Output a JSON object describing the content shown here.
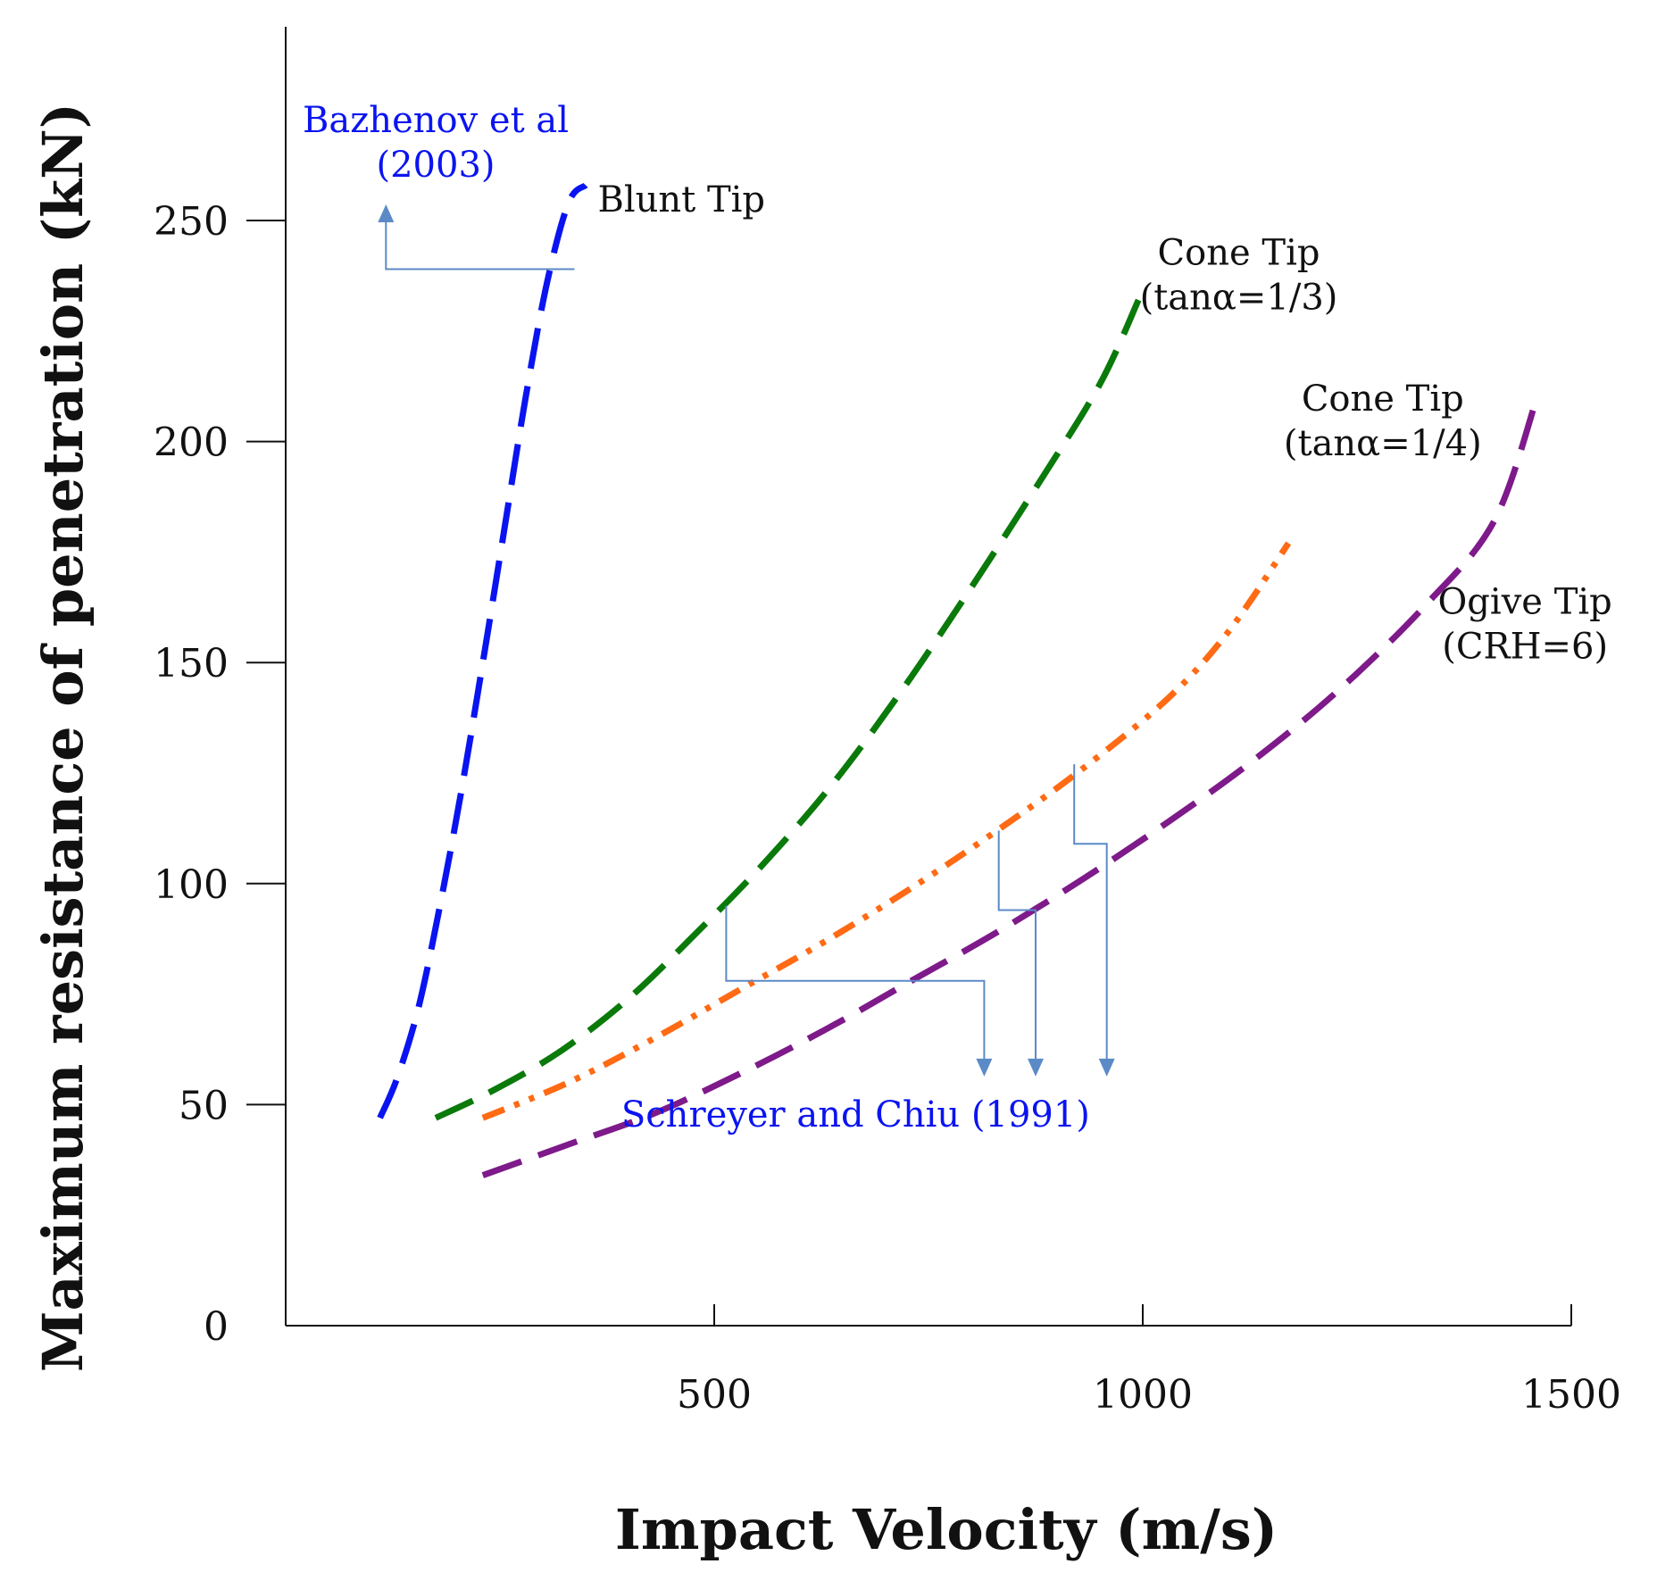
{
  "chart_data": {
    "type": "line",
    "xlabel": "Impact Velocity (m/s)",
    "ylabel": "Maximum resistance of penetration (kN)",
    "xlim": [
      0,
      1500
    ],
    "ylim": [
      0,
      300
    ],
    "x_ticks": [
      {
        "value": 500,
        "label": "500"
      },
      {
        "value": 1000,
        "label": "1000"
      },
      {
        "value": 1500,
        "label": "1500"
      }
    ],
    "y_ticks": [
      {
        "value": 0,
        "label": "0",
        "tick_mark": false
      },
      {
        "value": 50,
        "label": "50",
        "tick_mark": true
      },
      {
        "value": 100,
        "label": "100",
        "tick_mark": true
      },
      {
        "value": 150,
        "label": "150",
        "tick_mark": true
      },
      {
        "value": 200,
        "label": "200",
        "tick_mark": true
      },
      {
        "value": 250,
        "label": "250",
        "tick_mark": true
      }
    ],
    "grid": false,
    "series": [
      {
        "name": "Blunt Tip",
        "color": "#0a14f0",
        "style": "dashed",
        "points": [
          [
            110,
            47
          ],
          [
            130,
            56
          ],
          [
            155,
            72
          ],
          [
            180,
            95
          ],
          [
            205,
            121
          ],
          [
            230,
            150
          ],
          [
            255,
            180
          ],
          [
            280,
            210
          ],
          [
            305,
            236
          ],
          [
            330,
            254
          ],
          [
            350,
            258
          ]
        ]
      },
      {
        "name": "Cone Tip (tanα=1/3)",
        "color": "#0a7a0a",
        "style": "dashed",
        "points": [
          [
            175,
            47
          ],
          [
            240,
            53
          ],
          [
            320,
            62
          ],
          [
            400,
            74
          ],
          [
            480,
            89
          ],
          [
            560,
            105
          ],
          [
            640,
            123
          ],
          [
            720,
            144
          ],
          [
            800,
            167
          ],
          [
            880,
            191
          ],
          [
            950,
            213
          ],
          [
            995,
            232
          ]
        ]
      },
      {
        "name": "Cone Tip (tanα=1/4)",
        "color": "#ff6a14",
        "style": "dash-dot-dot",
        "points": [
          [
            230,
            47
          ],
          [
            330,
            55
          ],
          [
            430,
            65
          ],
          [
            530,
            76
          ],
          [
            630,
            87
          ],
          [
            730,
            99
          ],
          [
            830,
            112
          ],
          [
            930,
            126
          ],
          [
            1030,
            142
          ],
          [
            1100,
            157
          ],
          [
            1170,
            177
          ]
        ]
      },
      {
        "name": "Ogive Tip (CRH=6)",
        "color": "#7e1a8a",
        "style": "dashed",
        "points": [
          [
            230,
            34
          ],
          [
            330,
            41
          ],
          [
            430,
            48
          ],
          [
            530,
            57
          ],
          [
            630,
            67
          ],
          [
            730,
            78
          ],
          [
            830,
            89
          ],
          [
            930,
            101
          ],
          [
            1030,
            114
          ],
          [
            1130,
            128
          ],
          [
            1230,
            144
          ],
          [
            1330,
            163
          ],
          [
            1410,
            182
          ],
          [
            1460,
            210
          ]
        ]
      }
    ],
    "curve_labels": [
      {
        "lines": [
          "Blunt Tip"
        ],
        "at": [
          364,
          252
        ],
        "anchor": "start"
      },
      {
        "lines": [
          "Cone Tip",
          "(tanα=1/3)"
        ],
        "at": [
          1112,
          240
        ],
        "anchor": "middle"
      },
      {
        "lines": [
          "Cone Tip",
          "(tanα=1/4)"
        ],
        "at": [
          1280,
          207
        ],
        "anchor": "middle"
      },
      {
        "lines": [
          "Ogive Tip",
          "(CRH=6)"
        ],
        "at": [
          1446,
          161
        ],
        "anchor": "middle"
      }
    ],
    "annotations": [
      {
        "lines": [
          "Bazhenov et al",
          "(2003)"
        ],
        "color": "#0a14f0",
        "at": [
          175,
          270
        ],
        "anchor": "middle"
      },
      {
        "lines": [
          "Schreyer and Chiu (1991)"
        ],
        "color": "#0a14f0",
        "at": [
          665,
          45
        ],
        "anchor": "middle"
      }
    ],
    "pointer_color": "#5b8ac7",
    "pointers": [
      {
        "path": [
          [
            337,
            239
          ],
          [
            117,
            239
          ],
          [
            117,
            250
          ]
        ],
        "arrow": "up"
      },
      {
        "path": [
          [
            514,
            95
          ],
          [
            514,
            78
          ],
          [
            815,
            78
          ],
          [
            815,
            60
          ]
        ],
        "arrow": "down"
      },
      {
        "path": [
          [
            832,
            112
          ],
          [
            832,
            94
          ],
          [
            875,
            94
          ],
          [
            875,
            60
          ]
        ],
        "arrow": "down"
      },
      {
        "path": [
          [
            920,
            127
          ],
          [
            920,
            109
          ],
          [
            958,
            109
          ],
          [
            958,
            60
          ]
        ],
        "arrow": "down"
      }
    ]
  }
}
